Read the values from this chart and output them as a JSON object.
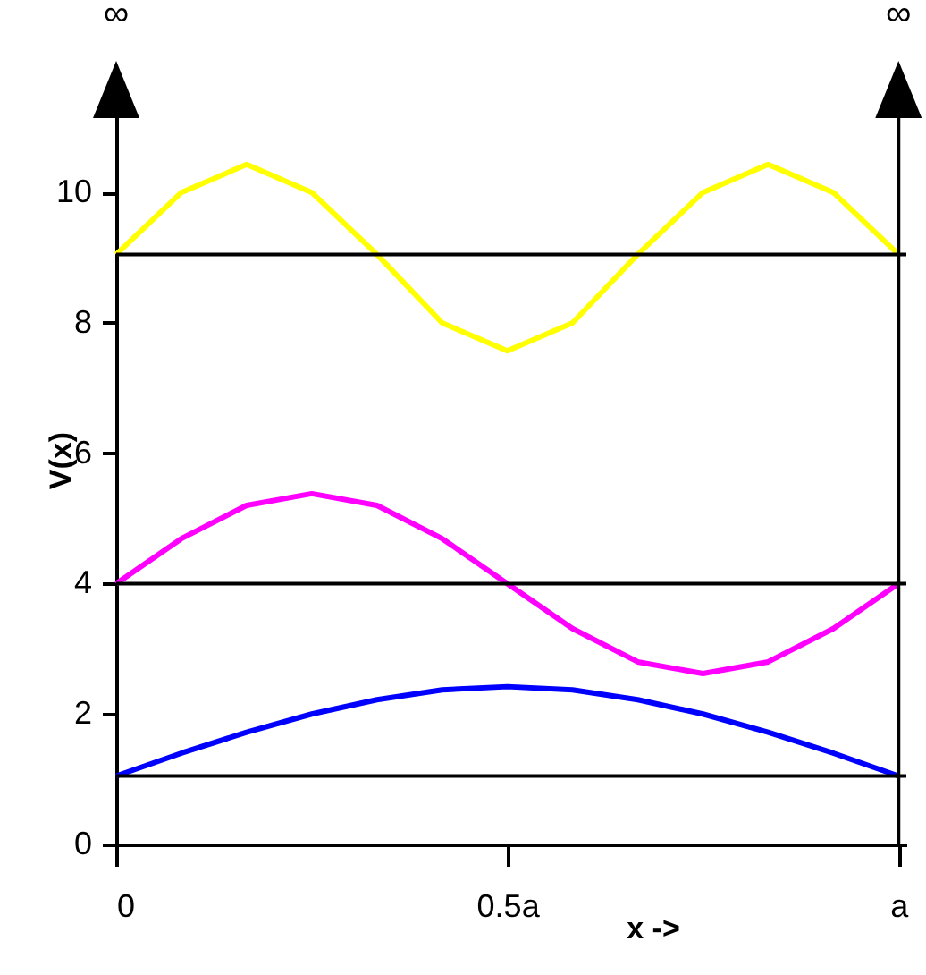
{
  "chart_data": {
    "type": "line",
    "xlabel": "x ->",
    "ylabel": "V(x)",
    "x": [
      0,
      0.0833,
      0.1667,
      0.25,
      0.3333,
      0.4167,
      0.5,
      0.5833,
      0.6667,
      0.75,
      0.8333,
      0.9167,
      1
    ],
    "series": [
      {
        "color": "#0000ff",
        "values": [
          1.05,
          1.4,
          1.72,
          2.0,
          2.22,
          2.37,
          2.42,
          2.37,
          2.22,
          2.0,
          1.72,
          1.4,
          1.05
        ]
      },
      {
        "color": "#ff00ff",
        "values": [
          4,
          4.69,
          5.2,
          5.38,
          5.2,
          4.69,
          4,
          3.31,
          2.8,
          2.62,
          2.8,
          3.31,
          4
        ]
      },
      {
        "color": "#ffff00",
        "values": [
          9.05,
          10.0,
          10.43,
          10.0,
          9.05,
          8.0,
          7.57,
          8.0,
          9.05,
          10.0,
          10.43,
          10.0,
          9.05
        ]
      }
    ],
    "xlim": [
      0,
      1.01
    ],
    "ylim": [
      0,
      11.8
    ],
    "xticks": [
      {
        "value": 0,
        "label": "0"
      },
      {
        "value": 0.5,
        "label": "0.5a"
      },
      {
        "value": 1,
        "label": "a"
      }
    ],
    "yticks": [
      0,
      2,
      4,
      6,
      8,
      10
    ],
    "ref_lines": [
      {
        "axis": "y",
        "value": 1.05,
        "color": "#000000"
      },
      {
        "axis": "y",
        "value": 4,
        "color": "#000000"
      },
      {
        "axis": "y",
        "value": 9.05,
        "color": "#000000"
      },
      {
        "axis": "x",
        "value": 1,
        "label": "∞",
        "color": "#000000"
      }
    ],
    "annotations": [
      "∞"
    ],
    "grid": false
  }
}
